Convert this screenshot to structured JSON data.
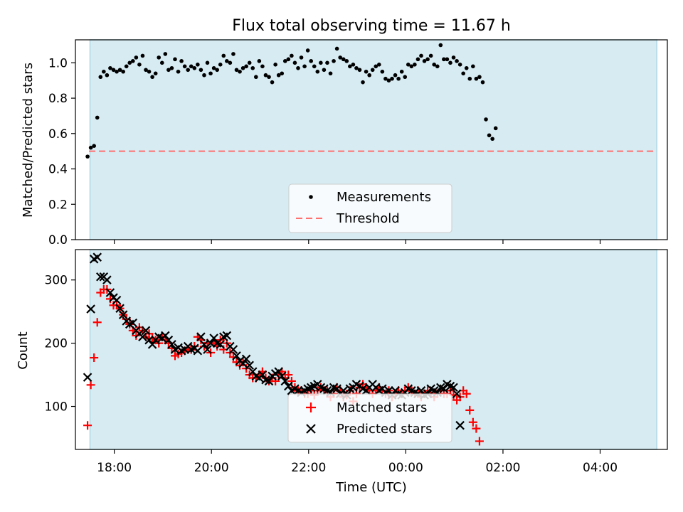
{
  "chart_data": [
    {
      "type": "scatter",
      "title": "Flux total observing time = 11.67 h",
      "ylabel": "Matched/Predicted stars",
      "xlabel": "",
      "ylim": [
        0,
        1.13
      ],
      "yticks": [
        "0.0",
        "0.2",
        "0.4",
        "0.6",
        "0.8",
        "1.0"
      ],
      "shaded_span": {
        "from": "17:30",
        "to": "05:10",
        "color": "#add8e6"
      },
      "threshold": {
        "name": "Threshold",
        "value": 0.5,
        "color": "#ff7070",
        "style": "dashed"
      },
      "legend": {
        "placement": "bottom-center",
        "entries": [
          "Measurements",
          "Threshold"
        ]
      },
      "series": [
        {
          "name": "Measurements",
          "marker": "dot",
          "color": "#000000",
          "start": "17:27",
          "step_minutes": 4,
          "values": [
            0.47,
            0.52,
            0.53,
            0.69,
            0.92,
            0.95,
            0.93,
            0.97,
            0.96,
            0.95,
            0.96,
            0.95,
            0.98,
            1.0,
            1.01,
            1.03,
            0.99,
            1.04,
            0.96,
            0.95,
            0.92,
            0.94,
            1.03,
            1.0,
            1.05,
            0.96,
            0.97,
            1.02,
            0.95,
            1.01,
            0.98,
            0.96,
            0.98,
            0.97,
            0.99,
            0.96,
            0.93,
            1.0,
            0.94,
            0.97,
            0.96,
            0.99,
            1.04,
            1.01,
            1.0,
            1.05,
            0.96,
            0.95,
            0.97,
            0.98,
            1.0,
            0.97,
            0.92,
            1.01,
            0.98,
            0.93,
            0.92,
            0.89,
            0.99,
            0.93,
            0.94,
            1.01,
            1.02,
            1.04,
            1.0,
            0.97,
            1.03,
            0.98,
            1.07,
            1.01,
            0.98,
            0.95,
            1.0,
            0.96,
            1.0,
            0.94,
            1.01,
            1.08,
            1.03,
            1.02,
            1.01,
            0.98,
            0.99,
            0.97,
            0.96,
            0.89,
            0.95,
            0.93,
            0.96,
            0.98,
            0.99,
            0.95,
            0.91,
            0.9,
            0.91,
            0.93,
            0.91,
            0.95,
            0.92,
            0.99,
            0.98,
            0.99,
            1.02,
            1.04,
            1.01,
            1.02,
            1.04,
            0.99,
            0.98,
            1.1,
            1.02,
            1.02,
            1.0,
            1.03,
            1.01,
            0.99,
            0.94,
            0.97,
            0.91,
            0.98,
            0.91,
            0.92,
            0.89,
            0.68,
            0.59,
            0.57,
            0.63
          ]
        }
      ]
    },
    {
      "type": "scatter",
      "title": "",
      "ylabel": "Count",
      "xlabel": "Time (UTC)",
      "ylim": [
        32,
        348
      ],
      "yticks": [
        "100",
        "200",
        "300"
      ],
      "x_range": [
        "17:12",
        "05:23"
      ],
      "x_ticks": [
        "18:00",
        "20:00",
        "22:00",
        "00:00",
        "02:00",
        "04:00"
      ],
      "shaded_span": {
        "from": "17:30",
        "to": "05:10",
        "color": "#add8e6"
      },
      "legend": {
        "placement": "bottom-center",
        "entries": [
          "Matched stars",
          "Predicted stars"
        ]
      },
      "series": [
        {
          "name": "Matched stars",
          "marker": "plus",
          "color": "#ff0000",
          "start": "17:27",
          "step_minutes": 4,
          "values": [
            70,
            134,
            177,
            233,
            280,
            285,
            285,
            270,
            260,
            260,
            255,
            245,
            238,
            230,
            220,
            212,
            225,
            220,
            210,
            215,
            208,
            205,
            200,
            210,
            205,
            200,
            192,
            180,
            183,
            185,
            188,
            190,
            190,
            195,
            210,
            205,
            195,
            200,
            185,
            200,
            195,
            205,
            190,
            200,
            185,
            178,
            170,
            165,
            170,
            160,
            150,
            145,
            145,
            150,
            155,
            145,
            140,
            145,
            140,
            150,
            155,
            145,
            150,
            140,
            130,
            125,
            125,
            120,
            120,
            125,
            118,
            125,
            130,
            125,
            125,
            115,
            120,
            130,
            125,
            115,
            118,
            125,
            108,
            120,
            130,
            135,
            130,
            125,
            120,
            125,
            130,
            125,
            120,
            125,
            115,
            120,
            125,
            120,
            125,
            130,
            125,
            120,
            125,
            115,
            120,
            125,
            120,
            115,
            120,
            125,
            120,
            120,
            125,
            118,
            110,
            115,
            125,
            120,
            94,
            75,
            65,
            45
          ]
        },
        {
          "name": "Predicted stars",
          "marker": "x",
          "color": "#000000",
          "start": "17:27",
          "step_minutes": 4,
          "values": [
            146,
            254,
            333,
            336,
            305,
            305,
            300,
            280,
            272,
            268,
            255,
            245,
            235,
            230,
            232,
            220,
            215,
            210,
            220,
            205,
            198,
            205,
            210,
            208,
            212,
            205,
            198,
            190,
            193,
            188,
            190,
            195,
            190,
            192,
            188,
            210,
            198,
            190,
            200,
            208,
            200,
            198,
            210,
            212,
            195,
            190,
            180,
            172,
            168,
            175,
            165,
            155,
            148,
            145,
            150,
            142,
            140,
            148,
            152,
            155,
            148,
            140,
            132,
            125,
            128,
            125,
            122,
            125,
            128,
            130,
            132,
            135,
            130,
            128,
            125,
            122,
            130,
            128,
            120,
            125,
            118,
            128,
            130,
            135,
            132,
            128,
            125,
            130,
            135,
            130,
            125,
            128,
            122,
            125,
            118,
            125,
            120,
            118,
            122,
            128,
            125,
            122,
            120,
            125,
            118,
            120,
            128,
            125,
            122,
            130,
            128,
            135,
            132,
            130,
            120,
            70
          ]
        }
      ]
    }
  ]
}
